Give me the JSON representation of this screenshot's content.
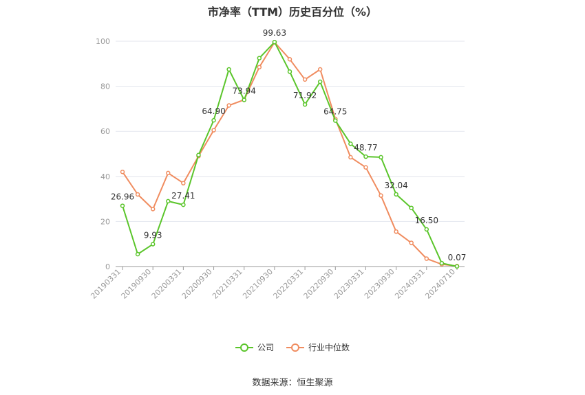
{
  "chart_data": {
    "type": "line",
    "title": "市净率（TTM）历史百分位（%）",
    "ylim": [
      0,
      100
    ],
    "yticks": [
      0,
      20,
      40,
      60,
      80,
      100
    ],
    "x_tick_labels": [
      "20190331",
      "20190930",
      "20200331",
      "20200930",
      "20210331",
      "20210930",
      "20220331",
      "20220930",
      "20230331",
      "20230930",
      "20240331",
      "20240710"
    ],
    "x": [
      "20190331",
      "20190630",
      "20190930",
      "20191231",
      "20200331",
      "20200630",
      "20200930",
      "20201231",
      "20210331",
      "20210630",
      "20210930",
      "20211231",
      "20220331",
      "20220630",
      "20220930",
      "20221231",
      "20230331",
      "20230630",
      "20230930",
      "20231231",
      "20240331",
      "20240630",
      "20240710"
    ],
    "series": [
      {
        "name": "公司",
        "color": "#5ac52a",
        "values": [
          26.96,
          5.5,
          9.93,
          29,
          27.41,
          49.5,
          64.9,
          87.5,
          73.94,
          92.5,
          99.63,
          86.5,
          71.92,
          82,
          64.75,
          54.5,
          48.77,
          48.5,
          32.04,
          26,
          16.5,
          1.5,
          0.07
        ],
        "labels": {
          "0": "26.96",
          "2": "9.93",
          "4": "27.41",
          "6": "64.90",
          "8": "73.94",
          "10": "99.63",
          "12": "71.92",
          "14": "64.75",
          "16": "48.77",
          "18": "32.04",
          "20": "16.50",
          "22": "0.07"
        }
      },
      {
        "name": "行业中位数",
        "color": "#f08c5f",
        "values": [
          42,
          32,
          25.5,
          41.5,
          37,
          49,
          60.5,
          71.5,
          74,
          88.5,
          99.5,
          92,
          83,
          87.5,
          65.5,
          48.5,
          44,
          31.5,
          15.5,
          10.5,
          3.5,
          1,
          0.2
        ]
      }
    ],
    "grid": true,
    "legend_position": "bottom-center"
  },
  "source": "数据来源：恒生聚源"
}
